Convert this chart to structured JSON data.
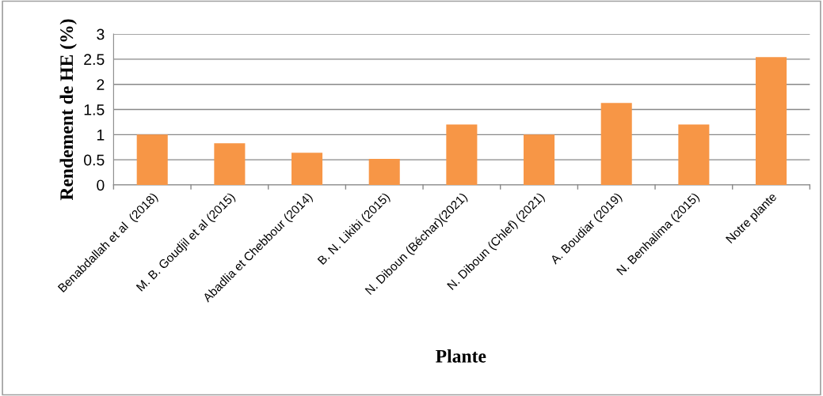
{
  "chart_data": {
    "type": "bar",
    "xlabel": "Plante",
    "ylabel": "Rendement de HE (%)",
    "categories": [
      "Benabdallah et al  (2018)",
      "M. B. Goudjil et al (2015)",
      "Abadlia et Chebbour (2014)",
      "B. N. Likibi (2015)",
      "N. Diboun (Béchar)(2021)",
      "N. Diboun (Chlef) (2021)",
      "A. Boudiar (2019)",
      "N. Benhalima (2015)",
      "Notre plante"
    ],
    "values": [
      1.0,
      0.83,
      0.64,
      0.52,
      1.2,
      1.0,
      1.63,
      1.2,
      2.54
    ],
    "color": "#f79646",
    "ylim": [
      0,
      3
    ],
    "yticks": [
      0,
      0.5,
      1,
      1.5,
      2,
      2.5,
      3
    ],
    "grid": "y"
  }
}
